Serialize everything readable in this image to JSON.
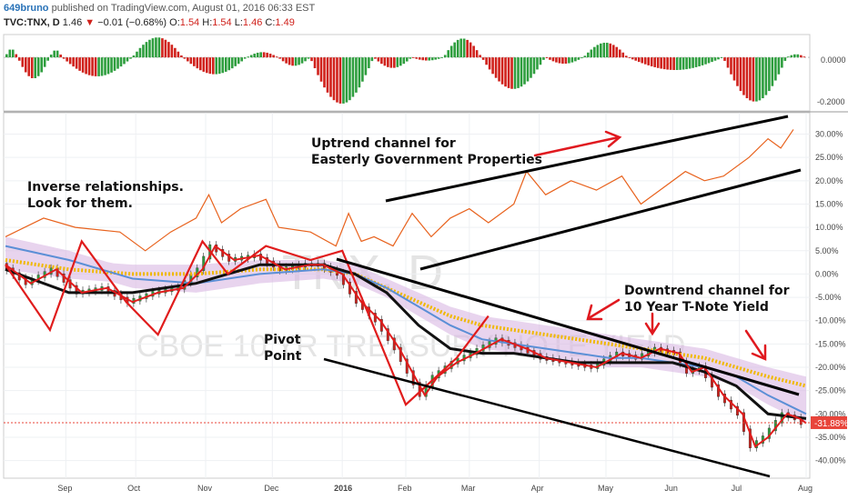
{
  "header": {
    "user": "649bruno",
    "published": "published on TradingView.com, August 01, 2016 06:33 EST",
    "symbol": "TVC:TNX, D",
    "last": "1.46",
    "change_arrow": "▼",
    "change": "−0.01 (−0.68%)",
    "o_label": "O:",
    "o_val": "1.54",
    "h_label": "H:",
    "h_val": "1.54",
    "l_label": "L:",
    "l_val": "1.46",
    "c_label": "C:",
    "c_val": "1.49"
  },
  "watermark": {
    "line1": "TNX, D",
    "line2": "CBOE 10 YR TREASURY NOTE YIELD"
  },
  "annotations": {
    "inverse_1": "Inverse relationships.",
    "inverse_2": "Look for them.",
    "uptrend_1": "Uptrend channel for",
    "uptrend_2": "Easterly Government Properties",
    "downtrend_1": "Downtrend channel for",
    "downtrend_2": "10 Year T-Note Yield",
    "pivot_1": "Pivot",
    "pivot_2": "Point"
  },
  "colors": {
    "up": "#2e9e3e",
    "down": "#d0211b",
    "overlay": "#e8621d",
    "arrow": "#e0191f",
    "cloud": "#d9b8e3",
    "last_badge": "#e8443a"
  },
  "chart_data": [
    {
      "type": "bar",
      "panel": "oscillator",
      "ylim": [
        -0.25,
        0.1
      ],
      "ticks": [
        "0.0000",
        "-0.2000"
      ],
      "tick_values": [
        0.0,
        -0.2
      ],
      "segments": [
        {
          "start": 0,
          "end": 4,
          "peak": 0.04
        },
        {
          "start": 4,
          "end": 14,
          "peak": -0.1
        },
        {
          "start": 14,
          "end": 18,
          "peak": 0.035
        },
        {
          "start": 18,
          "end": 40,
          "peak": -0.09
        },
        {
          "start": 40,
          "end": 56,
          "peak": 0.095
        },
        {
          "start": 56,
          "end": 76,
          "peak": -0.08
        },
        {
          "start": 76,
          "end": 86,
          "peak": 0.025
        },
        {
          "start": 86,
          "end": 96,
          "peak": -0.04
        },
        {
          "start": 96,
          "end": 116,
          "peak": -0.22
        },
        {
          "start": 116,
          "end": 128,
          "peak": -0.05
        },
        {
          "start": 128,
          "end": 138,
          "peak": -0.015
        },
        {
          "start": 138,
          "end": 150,
          "peak": 0.09
        },
        {
          "start": 150,
          "end": 170,
          "peak": -0.15
        },
        {
          "start": 170,
          "end": 182,
          "peak": -0.03
        },
        {
          "start": 182,
          "end": 196,
          "peak": 0.07
        },
        {
          "start": 196,
          "end": 226,
          "peak": -0.06
        },
        {
          "start": 226,
          "end": 246,
          "peak": -0.21
        },
        {
          "start": 246,
          "end": 252,
          "peak": 0.015
        }
      ]
    },
    {
      "type": "line",
      "panel": "price",
      "title": "TNX, D",
      "x_ticks": [
        "Sep",
        "Oct",
        "Nov",
        "Dec",
        "2016",
        "Feb",
        "Mar",
        "Apr",
        "May",
        "Jun",
        "Jul",
        "Aug"
      ],
      "x_tick_index": [
        19,
        41,
        63,
        84,
        106,
        126,
        146,
        168,
        189,
        210,
        231,
        252
      ],
      "y_ticks": [
        "30.00%",
        "25.00%",
        "20.00%",
        "15.00%",
        "10.00%",
        "5.00%",
        "0.00%",
        "-5.00%",
        "-10.00%",
        "-15.00%",
        "-20.00%",
        "-25.00%",
        "-30.00%",
        "-35.00%",
        "-40.00%"
      ],
      "y_tick_values": [
        30,
        25,
        20,
        15,
        10,
        5,
        0,
        -5,
        -10,
        -15,
        -20,
        -25,
        -30,
        -35,
        -40
      ],
      "ylim": [
        -43,
        34
      ],
      "last_value_label": "-31.88%",
      "last_value": -31.88,
      "series": [
        {
          "key": "overlay",
          "x": [
            0,
            12,
            22,
            36,
            44,
            52,
            60,
            64,
            68,
            74,
            82,
            86,
            96,
            104,
            108,
            112,
            116,
            122,
            128,
            134,
            140,
            146,
            152,
            160,
            164,
            170,
            178,
            186,
            194,
            200,
            206,
            214,
            220,
            226,
            234,
            240,
            244,
            248
          ],
          "y": [
            8,
            12,
            10,
            9,
            5,
            9,
            12,
            17,
            11,
            14,
            16,
            10,
            9,
            6,
            13,
            7,
            8,
            6,
            13,
            8,
            12,
            14,
            11,
            15,
            22,
            17,
            20,
            18,
            21,
            15,
            18,
            22,
            20,
            21,
            25,
            29,
            27,
            31
          ]
        },
        {
          "key": "price",
          "x": [
            0,
            8,
            16,
            24,
            32,
            40,
            48,
            56,
            62,
            66,
            72,
            80,
            88,
            96,
            100,
            106,
            112,
            118,
            124,
            128,
            132,
            136,
            142,
            148,
            156,
            164,
            170,
            178,
            186,
            194,
            200,
            206,
            212,
            216,
            220,
            226,
            232,
            236,
            240,
            246,
            250,
            252
          ],
          "y": [
            2,
            -2,
            1,
            -4,
            -3,
            -6,
            -4,
            -3,
            1,
            6,
            3,
            4,
            1,
            2,
            2,
            0,
            -6,
            -10,
            -16,
            -21,
            -26,
            -22,
            -19,
            -17,
            -14,
            -16,
            -18,
            -19,
            -20,
            -17,
            -18,
            -16,
            -17,
            -21,
            -20,
            -26,
            -30,
            -37,
            -35,
            -30,
            -31,
            -32
          ]
        },
        {
          "key": "ma_black",
          "x": [
            0,
            20,
            40,
            60,
            80,
            100,
            110,
            120,
            130,
            140,
            150,
            160,
            170,
            180,
            190,
            200,
            210,
            220,
            230,
            240,
            252
          ],
          "y": [
            1,
            -4,
            -4,
            -2,
            2,
            2,
            0,
            -4,
            -11,
            -16,
            -17,
            -17,
            -18,
            -19,
            -19,
            -19,
            -19,
            -21,
            -24,
            -30,
            -31
          ]
        },
        {
          "key": "ma_blue",
          "x": [
            0,
            20,
            40,
            60,
            80,
            100,
            110,
            120,
            130,
            140,
            150,
            160,
            170,
            180,
            190,
            200,
            210,
            220,
            230,
            240,
            252
          ],
          "y": [
            6,
            3,
            -1,
            -2,
            0,
            1,
            0,
            -3,
            -7,
            -11,
            -14,
            -15,
            -16,
            -17,
            -18,
            -18,
            -19,
            -20,
            -22,
            -26,
            -30
          ]
        },
        {
          "key": "ma_yellow",
          "x": [
            0,
            20,
            40,
            60,
            80,
            100,
            110,
            120,
            130,
            140,
            150,
            160,
            170,
            180,
            190,
            200,
            210,
            220,
            230,
            240,
            252
          ],
          "y": [
            3,
            1,
            0,
            0,
            1,
            1,
            0,
            -3,
            -6,
            -9,
            -11,
            -12,
            -13,
            -14,
            -15,
            -16,
            -17,
            -18,
            -20,
            -22,
            -24
          ]
        }
      ]
    }
  ]
}
